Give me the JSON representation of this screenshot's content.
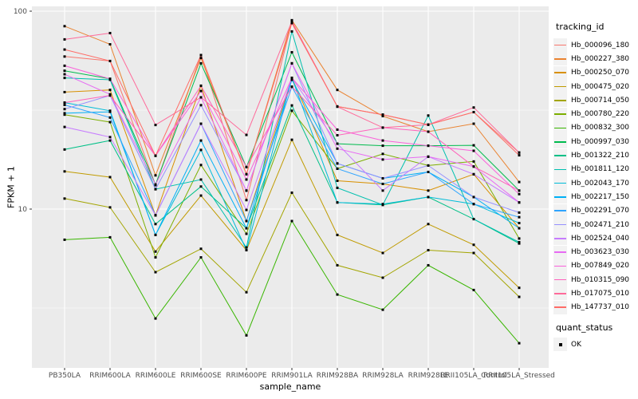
{
  "legend": {
    "tracking_title": "tracking_id",
    "quant_title": "quant_status",
    "quant_label": "OK"
  },
  "style": {
    "panel_bg": "#EBEBEB",
    "grid_color": "#FFFFFF",
    "tick_color": "#333333",
    "axis_text_color": "#4D4D4D",
    "point_color": "#000000",
    "key_bg": "#F2F2F2"
  },
  "chart_data": {
    "type": "line",
    "title": "",
    "xlabel": "sample_name",
    "ylabel": "FPKM + 1",
    "y_scale": "log10",
    "ylim": [
      1.6,
      106
    ],
    "grid": true,
    "legend_position": "right",
    "marker": "black-square",
    "y_ticks": [
      {
        "label": "100",
        "value": 100
      },
      {
        "label": "10",
        "value": 10
      }
    ],
    "y_minor": [
      31.62,
      3.162
    ],
    "categories": [
      "PB350LA",
      "RRIM600LA",
      "RRIM600LE",
      "RRIM600SE",
      "RRIM600PE",
      "RRIM901LA",
      "RRIM928BA",
      "RRIM928LA",
      "RRIM928LE",
      "RRII105LA_Control",
      "RRII105LA_Stressed"
    ],
    "series": [
      {
        "name": "Hb_000096_180",
        "color": "#F8766D",
        "values": [
          59,
          56,
          13.2,
          60,
          11.1,
          88,
          33,
          30,
          26.7,
          30.9,
          19.3
        ]
      },
      {
        "name": "Hb_000227_380",
        "color": "#EA8331",
        "values": [
          84,
          68,
          14.8,
          58,
          15,
          90,
          40,
          29.5,
          24.6,
          27,
          13.7
        ]
      },
      {
        "name": "Hb_000250_070",
        "color": "#D89000",
        "values": [
          39,
          40,
          9.3,
          42,
          8.7,
          46,
          13.9,
          13.4,
          12.4,
          15,
          8
        ]
      },
      {
        "name": "Hb_000475_020",
        "color": "#C09B00",
        "values": [
          15.5,
          14.5,
          6.1,
          11.7,
          6.2,
          22.4,
          7.4,
          6,
          8.4,
          6.6,
          4
        ]
      },
      {
        "name": "Hb_000714_050",
        "color": "#A3A500",
        "values": [
          11.3,
          10.2,
          4.8,
          6.3,
          3.8,
          12.1,
          5.2,
          4.5,
          6.2,
          6,
          3.6
        ]
      },
      {
        "name": "Hb_000780_220",
        "color": "#7CAE00",
        "values": [
          30,
          27.5,
          5.7,
          16.7,
          7.5,
          31.4,
          16,
          19,
          16.6,
          17.4,
          7.1
        ]
      },
      {
        "name": "Hb_000832_300",
        "color": "#39B600",
        "values": [
          7,
          7.2,
          2.8,
          5.7,
          2.3,
          8.7,
          3.7,
          3.1,
          5.2,
          3.9,
          2.1
        ]
      },
      {
        "name": "Hb_000997_030",
        "color": "#00BB4E",
        "values": [
          50,
          45.5,
          13.3,
          54.5,
          16.3,
          62,
          21.4,
          20.9,
          20.9,
          21,
          12.4
        ]
      },
      {
        "name": "Hb_001322_210",
        "color": "#00C087",
        "values": [
          20,
          22.2,
          8.4,
          13,
          8,
          33.4,
          10.8,
          10.5,
          11.5,
          8.9,
          6.7
        ]
      },
      {
        "name": "Hb_001811_120",
        "color": "#00C0AF",
        "values": [
          46,
          45,
          12.6,
          14.1,
          6.4,
          79,
          12.8,
          10.5,
          29.7,
          8.9,
          6.8
        ]
      },
      {
        "name": "Hb_002043_170",
        "color": "#00BCD8",
        "values": [
          34.5,
          31.4,
          7.4,
          19.9,
          6.2,
          46,
          10.8,
          10.6,
          11.5,
          10.6,
          8.5
        ]
      },
      {
        "name": "Hb_002217_150",
        "color": "#00B0F6",
        "values": [
          30.5,
          31,
          7.4,
          22.2,
          8,
          45,
          17,
          14.3,
          15.4,
          11.5,
          8
        ]
      },
      {
        "name": "Hb_002291_070",
        "color": "#2FA4FF",
        "values": [
          33.6,
          29,
          9.3,
          27,
          8.7,
          41.5,
          16,
          13.4,
          15.4,
          10.6,
          9.1
        ]
      },
      {
        "name": "Hb_002471_210",
        "color": "#9590FF",
        "values": [
          32,
          37.5,
          12.6,
          33.5,
          12.4,
          54.5,
          17,
          14.3,
          16.6,
          11.5,
          9.6
        ]
      },
      {
        "name": "Hb_002524_040",
        "color": "#C77CFF",
        "values": [
          26,
          23.1,
          9.3,
          27,
          9.9,
          46,
          21.4,
          12.4,
          18.4,
          15,
          10.8
        ]
      },
      {
        "name": "Hb_003623_030",
        "color": "#E76BF3",
        "values": [
          48,
          38,
          13.3,
          36.7,
          12.4,
          54.5,
          20.2,
          17.8,
          18.4,
          16.4,
          10.8
        ]
      },
      {
        "name": "Hb_007849_020",
        "color": "#FA62DB",
        "values": [
          53,
          45.5,
          18.6,
          39.5,
          14.1,
          46,
          25.2,
          22.2,
          20.9,
          19.7,
          11.9
        ]
      },
      {
        "name": "Hb_010315_090",
        "color": "#FF62BC",
        "values": [
          34.5,
          37.5,
          18.6,
          42,
          16.3,
          41.5,
          23.6,
          25.8,
          24.6,
          16.4,
          12.4
        ]
      },
      {
        "name": "Hb_017075_010",
        "color": "#FF6A9A",
        "values": [
          72,
          77.5,
          26.6,
          36.7,
          23.7,
          89,
          32.9,
          25.8,
          26.7,
          32.6,
          19.3
        ]
      },
      {
        "name": "Hb_147737_010",
        "color": "#FF6C67",
        "values": [
          64,
          56,
          18.6,
          60,
          15,
          87,
          33,
          30,
          26.7,
          30.9,
          18.7
        ]
      }
    ]
  }
}
